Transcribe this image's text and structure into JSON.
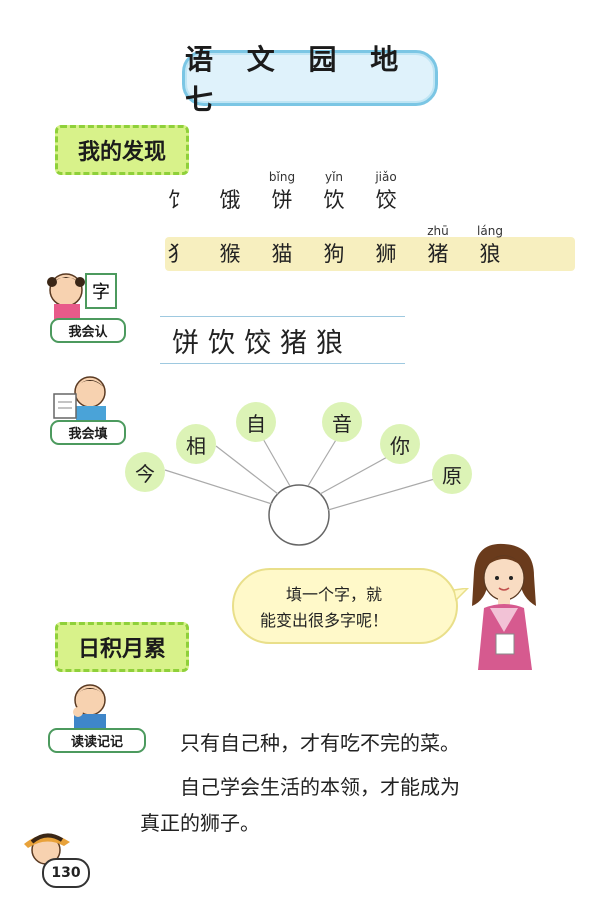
{
  "title": "语 文 园 地 七",
  "sections": {
    "discovery": "我的发现",
    "accumulate": "日积月累"
  },
  "discovery": {
    "row1": [
      {
        "py": "",
        "ch": "饣"
      },
      {
        "py": "",
        "ch": "饿"
      },
      {
        "py": "bǐng",
        "ch": "饼"
      },
      {
        "py": "yǐn",
        "ch": "饮"
      },
      {
        "py": "jiǎo",
        "ch": "饺"
      }
    ],
    "row2": [
      {
        "py": "",
        "ch": "犭"
      },
      {
        "py": "",
        "ch": "猴"
      },
      {
        "py": "",
        "ch": "猫"
      },
      {
        "py": "",
        "ch": "狗"
      },
      {
        "py": "",
        "ch": "狮"
      },
      {
        "py": "zhū",
        "ch": "猪"
      },
      {
        "py": "láng",
        "ch": "狼"
      }
    ]
  },
  "badges": {
    "recognize": "我会认",
    "fill": "我会填",
    "read": "读读记记"
  },
  "recognize_chars": "饼饮饺猪狼",
  "fan": {
    "nodes": [
      "今",
      "相",
      "自",
      "音",
      "你",
      "原"
    ]
  },
  "bubble": {
    "line1": "填一个字，就",
    "line2": "能变出很多字呢！"
  },
  "sayings": {
    "line1": "只有自己种，才有吃不完的菜。",
    "line2": "自己学会生活的本领，才能成为",
    "line3": "真正的狮子。"
  },
  "page_number": "130",
  "colors": {
    "title_bg": "#dff2fb",
    "title_border": "#7bc6e4",
    "label_green": "#d8f28a",
    "node_green": "#dcf3b6",
    "band_yellow": "#f7efbf",
    "bubble_yellow": "#fff9c9"
  }
}
